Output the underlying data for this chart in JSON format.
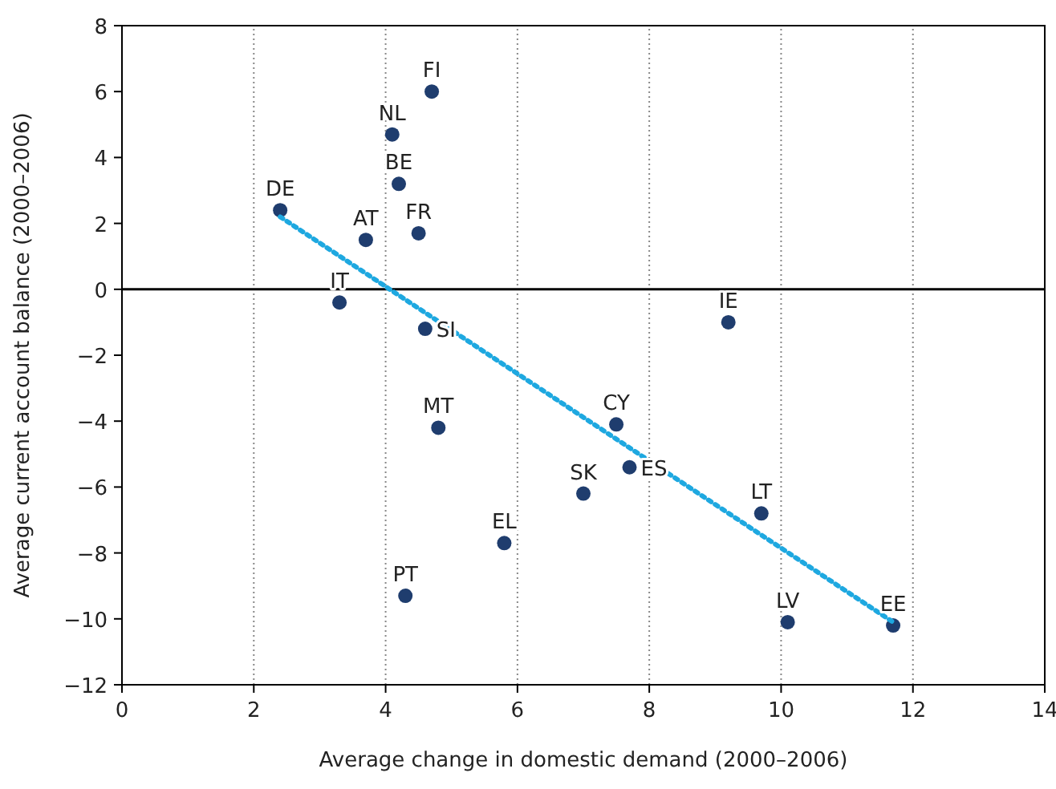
{
  "chart_data": {
    "type": "scatter",
    "xlabel": "Average change in domestic demand (2000–2006)",
    "ylabel": "Average current account balance (2000–2006)",
    "xlim": [
      0,
      14
    ],
    "xticks": [
      0,
      2,
      4,
      6,
      8,
      10,
      12,
      14
    ],
    "ylim": [
      -12,
      8
    ],
    "yticks": [
      -12,
      -10,
      -8,
      -6,
      -4,
      -2,
      0,
      2,
      4,
      6,
      8
    ],
    "grid": "x",
    "marker": "circle",
    "ref_lines": [
      {
        "axis": "y",
        "value": 0,
        "color": "#000000"
      }
    ],
    "series": [
      {
        "color": "#1f3d6e",
        "x": [
          4.7,
          4.1,
          4.2,
          2.4,
          3.7,
          4.5,
          3.3,
          4.6,
          9.2,
          4.8,
          7.5,
          7.7,
          7.0,
          9.7,
          5.8,
          4.3,
          10.1,
          11.7
        ],
        "values": [
          6.0,
          4.7,
          3.2,
          2.4,
          1.5,
          1.7,
          -0.4,
          -1.2,
          -1.0,
          -4.2,
          -4.1,
          -5.4,
          -6.2,
          -6.8,
          -7.7,
          -9.3,
          -10.1,
          -10.2
        ]
      },
      {
        "type": "line",
        "color": "#1ea8e0",
        "line_style": "dotted",
        "marker": "none",
        "x": [
          2.4,
          11.7
        ],
        "values": [
          2.2,
          -10.1
        ]
      }
    ],
    "annotations": [
      {
        "text": "FI",
        "x": 4.7,
        "y": 6.0
      },
      {
        "text": "NL",
        "x": 4.1,
        "y": 4.7
      },
      {
        "text": "BE",
        "x": 4.2,
        "y": 3.2
      },
      {
        "text": "DE",
        "x": 2.4,
        "y": 2.4
      },
      {
        "text": "AT",
        "x": 3.7,
        "y": 1.5
      },
      {
        "text": "FR",
        "x": 4.5,
        "y": 1.7
      },
      {
        "text": "IT",
        "x": 3.3,
        "y": -0.4
      },
      {
        "text": "SI",
        "x": 4.6,
        "y": -1.2
      },
      {
        "text": "IE",
        "x": 9.2,
        "y": -1.0
      },
      {
        "text": "MT",
        "x": 4.8,
        "y": -4.2
      },
      {
        "text": "CY",
        "x": 7.5,
        "y": -4.1
      },
      {
        "text": "ES",
        "x": 7.7,
        "y": -5.4
      },
      {
        "text": "SK",
        "x": 7.0,
        "y": -6.2
      },
      {
        "text": "LT",
        "x": 9.7,
        "y": -6.8
      },
      {
        "text": "EL",
        "x": 5.8,
        "y": -7.7
      },
      {
        "text": "PT",
        "x": 4.3,
        "y": -9.3
      },
      {
        "text": "LV",
        "x": 10.1,
        "y": -10.1
      },
      {
        "text": "EE",
        "x": 11.7,
        "y": -10.2
      }
    ]
  }
}
